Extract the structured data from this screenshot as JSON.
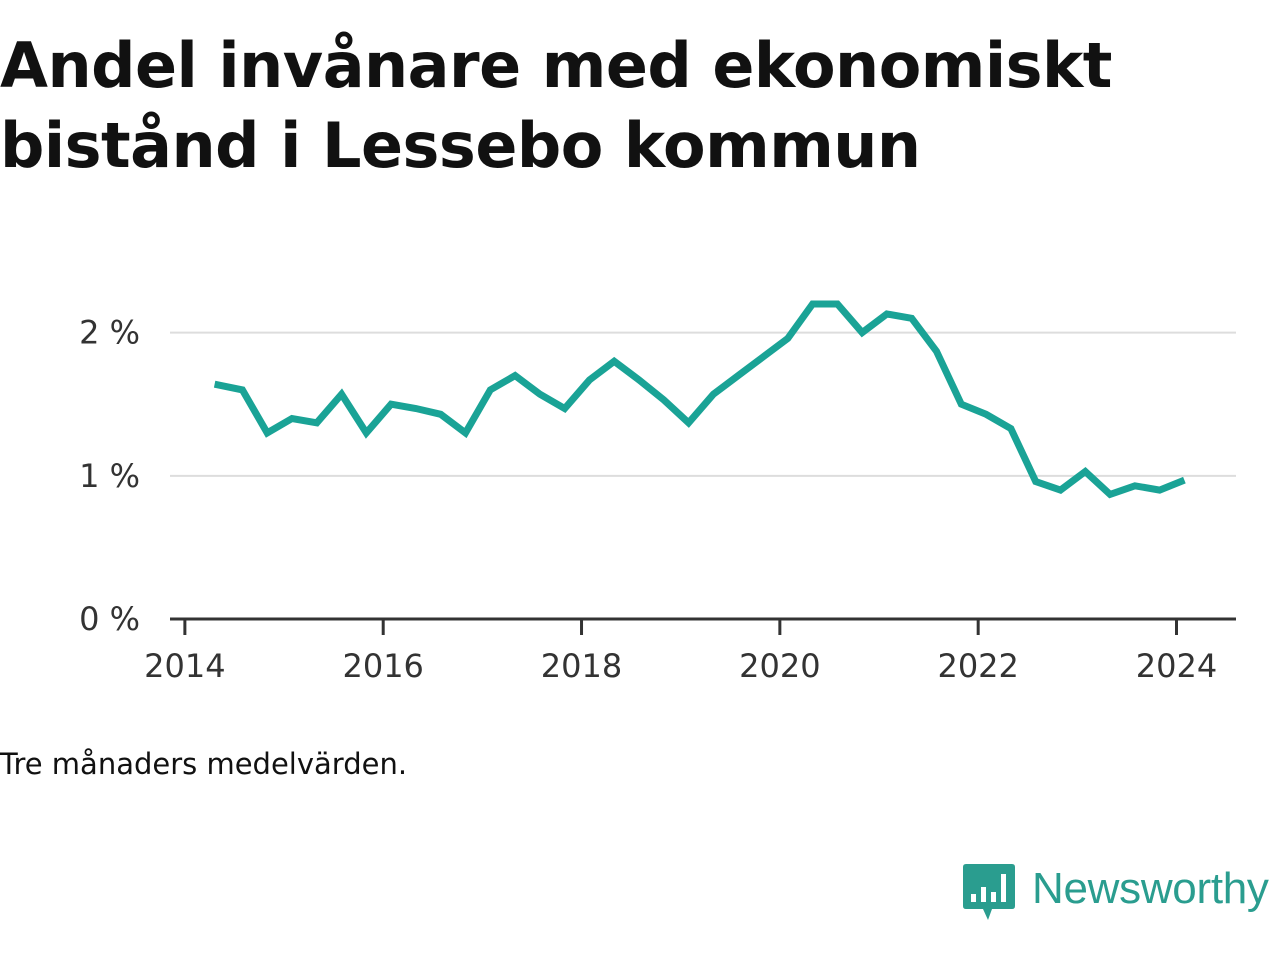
{
  "title": "Andel invånare med ekonomiskt bistånd i Lessebo kommun",
  "note": "Tre månaders medelvärden.",
  "brand": {
    "name": "Newsworthy",
    "icon": "bar-chart-speech-bubble-icon",
    "color": "#2a9d8f"
  },
  "colors": {
    "line": "#1aa396",
    "grid": "#dddddd",
    "axis": "#333333"
  },
  "chart_data": {
    "type": "line",
    "title": "Andel invånare med ekonomiskt bistånd i Lessebo kommun",
    "xlabel": "",
    "ylabel": "",
    "xlim": [
      2013.85,
      2024.6
    ],
    "ylim": [
      0,
      2.2
    ],
    "yticks": [
      0,
      1,
      2
    ],
    "ytick_labels": [
      "0 %",
      "1 %",
      "2 %"
    ],
    "xticks": [
      2014,
      2016,
      2018,
      2020,
      2022,
      2024
    ],
    "xtick_labels": [
      "2014",
      "2016",
      "2018",
      "2020",
      "2022",
      "2024"
    ],
    "grid": true,
    "legend": "none",
    "series": [
      {
        "x": [
          2014.3,
          2014.58,
          2014.83,
          2015.08,
          2015.33,
          2015.58,
          2015.83,
          2016.08,
          2016.33,
          2016.58,
          2016.83,
          2017.08,
          2017.33,
          2017.58,
          2017.83,
          2018.08,
          2018.33,
          2018.58,
          2018.83,
          2019.08,
          2019.33,
          2019.58,
          2019.83,
          2020.08,
          2020.33,
          2020.58,
          2020.83,
          2021.08,
          2021.33,
          2021.58,
          2021.83,
          2022.08,
          2022.33,
          2022.58,
          2022.83,
          2023.08,
          2023.33,
          2023.58,
          2023.83,
          2024.08
        ],
        "values": [
          1.64,
          1.6,
          1.3,
          1.4,
          1.37,
          1.57,
          1.3,
          1.5,
          1.47,
          1.43,
          1.3,
          1.6,
          1.7,
          1.57,
          1.47,
          1.67,
          1.8,
          1.67,
          1.53,
          1.37,
          1.57,
          1.7,
          1.83,
          1.96,
          2.2,
          2.2,
          2.0,
          2.13,
          2.1,
          1.87,
          1.5,
          1.43,
          1.33,
          0.96,
          0.9,
          1.03,
          0.87,
          0.93,
          0.9,
          0.97
        ]
      }
    ]
  }
}
